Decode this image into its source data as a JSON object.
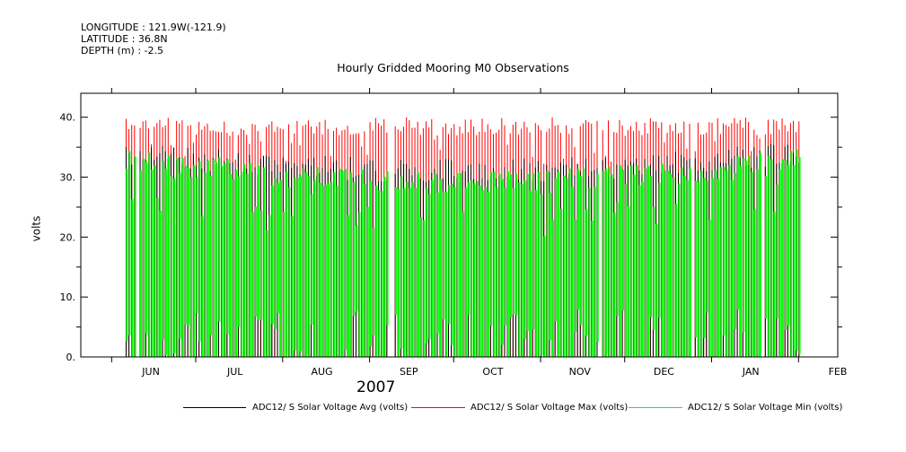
{
  "header": {
    "longitude": "LONGITUDE : 121.9W(-121.9)",
    "latitude": "LATITUDE : 36.8N",
    "depth": "DEPTH (m) : -2.5"
  },
  "colors": {
    "avg": "#000000",
    "max": "#ff0000",
    "min": "#00ff00"
  },
  "chart_data": {
    "type": "bar",
    "title": "Hourly Gridded Mooring M0 Observations",
    "ylabel": "volts",
    "xlabel": "2007",
    "ylim": [
      0,
      44
    ],
    "xlim": [
      "2007-05-21",
      "2008-02-15"
    ],
    "y_ticks": [
      "0.",
      "10.",
      "20.",
      "30.",
      "40."
    ],
    "x_ticks": [
      {
        "label": "JUN",
        "date": "2007-06-15"
      },
      {
        "label": "JUL",
        "date": "2007-07-15"
      },
      {
        "label": "AUG",
        "date": "2007-08-15"
      },
      {
        "label": "SEP",
        "date": "2007-09-15"
      },
      {
        "label": "OCT",
        "date": "2007-10-15"
      },
      {
        "label": "NOV",
        "date": "2007-11-15"
      },
      {
        "label": "DEC",
        "date": "2007-12-15"
      },
      {
        "label": "JAN",
        "date": "2008-01-15"
      },
      {
        "label": "FEB",
        "date": "2008-02-15"
      }
    ],
    "date_range": [
      "2007-06-06",
      "2008-02-01"
    ],
    "series": [
      {
        "name": "ADC12/ S Solar Voltage Avg (volts)",
        "typical_daily_high": 32
      },
      {
        "name": "ADC12/ S Solar Voltage Max (volts)",
        "typical_daily_high": 38,
        "peak": 41
      },
      {
        "name": "ADC12/ S Solar Voltage Min (volts)",
        "typical_daily_high": 31,
        "nightly_low": 0
      }
    ]
  }
}
